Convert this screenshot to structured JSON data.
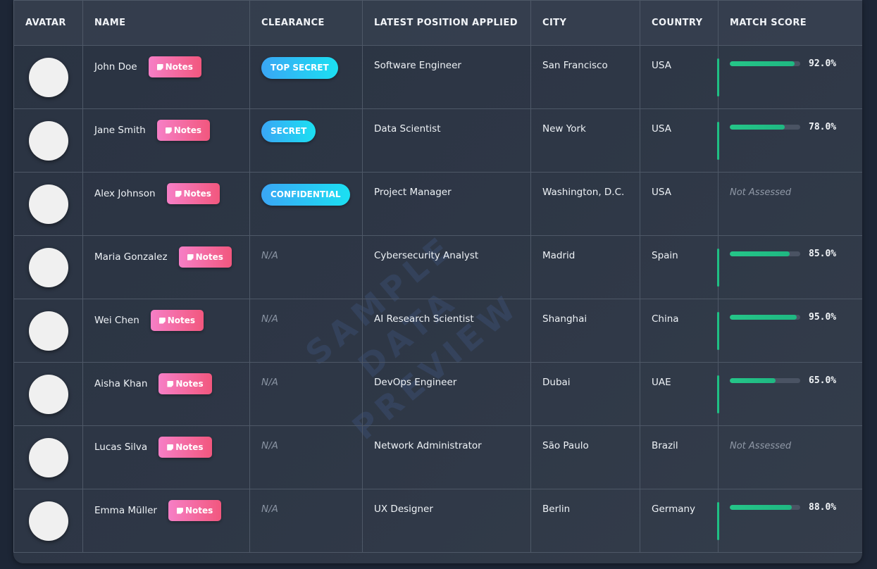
{
  "headers": {
    "avatar": "AVATAR",
    "name": "NAME",
    "clearance": "CLEARANCE",
    "position": "LATEST POSITION APPLIED",
    "city": "CITY",
    "country": "COUNTRY",
    "match": "MATCH SCORE"
  },
  "notes_label": "Notes",
  "watermark": {
    "line1": "SAMPLE DATA",
    "line2": "PREVIEW"
  },
  "colors": {
    "accent_green": "#1fbf84",
    "badge_blue": "#1be0f2",
    "notes_pink": "#f2577e"
  },
  "rows": [
    {
      "name": "John Doe",
      "clearance": "TOP SECRET",
      "position": "Software Engineer",
      "city": "San Francisco",
      "country": "USA",
      "score": 92.0,
      "score_text": "92.0%"
    },
    {
      "name": "Jane Smith",
      "clearance": "SECRET",
      "position": "Data Scientist",
      "city": "New York",
      "country": "USA",
      "score": 78.0,
      "score_text": "78.0%"
    },
    {
      "name": "Alex Johnson",
      "clearance": "CONFIDENTIAL",
      "position": "Project Manager",
      "city": "Washington, D.C.",
      "country": "USA",
      "score": null,
      "score_text": "Not Assessed"
    },
    {
      "name": "Maria Gonzalez",
      "clearance": "N/A",
      "position": "Cybersecurity Analyst",
      "city": "Madrid",
      "country": "Spain",
      "score": 85.0,
      "score_text": "85.0%"
    },
    {
      "name": "Wei Chen",
      "clearance": "N/A",
      "position": "AI Research Scientist",
      "city": "Shanghai",
      "country": "China",
      "score": 95.0,
      "score_text": "95.0%"
    },
    {
      "name": "Aisha Khan",
      "clearance": "N/A",
      "position": "DevOps Engineer",
      "city": "Dubai",
      "country": "UAE",
      "score": 65.0,
      "score_text": "65.0%"
    },
    {
      "name": "Lucas Silva",
      "clearance": "N/A",
      "position": "Network Administrator",
      "city": "São Paulo",
      "country": "Brazil",
      "score": null,
      "score_text": "Not Assessed"
    },
    {
      "name": "Emma Müller",
      "clearance": "N/A",
      "position": "UX Designer",
      "city": "Berlin",
      "country": "Germany",
      "score": 88.0,
      "score_text": "88.0%"
    }
  ]
}
